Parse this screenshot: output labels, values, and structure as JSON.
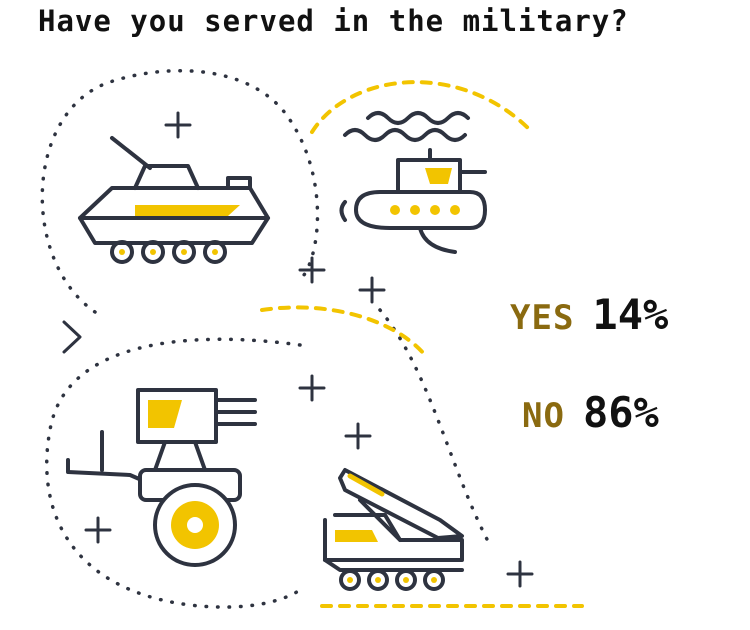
{
  "question": "Have you served in the military?",
  "results": [
    {
      "label": "YES",
      "value": "14%"
    },
    {
      "label": "NO",
      "value": "86%"
    }
  ],
  "colors": {
    "ink": "#2e3340",
    "accent": "#f2c400",
    "label": "#8a6a10",
    "text": "#111111"
  },
  "icons": [
    "armored-vehicle-icon",
    "submarine-icon",
    "cannon-cart-icon",
    "missile-launcher-icon"
  ]
}
